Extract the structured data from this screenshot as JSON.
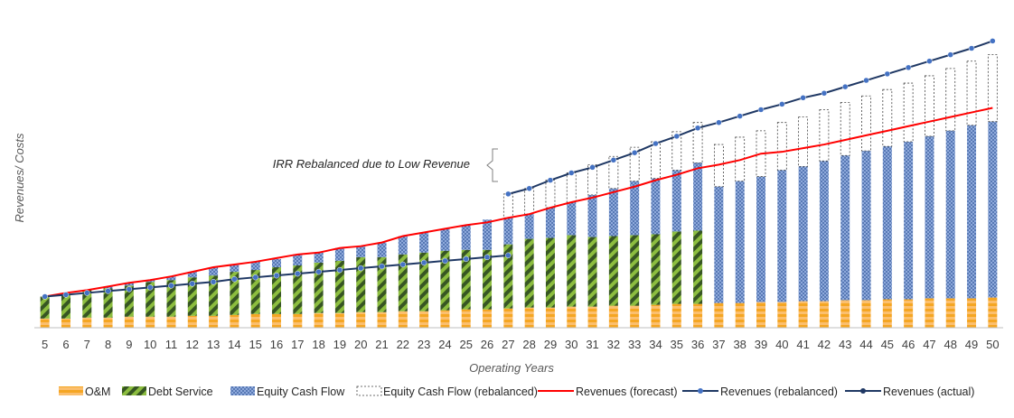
{
  "chart_data": {
    "type": "bar",
    "stacked": true,
    "xlabel": "Operating Years",
    "ylabel": "Revenues/ Costs",
    "x": [
      5,
      6,
      7,
      8,
      9,
      10,
      11,
      12,
      13,
      14,
      15,
      16,
      17,
      18,
      19,
      20,
      21,
      22,
      23,
      24,
      25,
      26,
      27,
      28,
      29,
      30,
      31,
      32,
      33,
      34,
      35,
      36,
      37,
      38,
      39,
      40,
      41,
      42,
      43,
      44,
      45,
      46,
      47,
      48,
      49,
      50
    ],
    "ylim": [
      0,
      340
    ],
    "grid": false,
    "legend_position": "bottom",
    "annotation": "IRR Rebalanced due to Low Revenue",
    "series": [
      {
        "name": "O&M",
        "kind": "bar",
        "color": "#f79646",
        "values": [
          10,
          10,
          11,
          11,
          12,
          12,
          12,
          13,
          13,
          14,
          15,
          15,
          15,
          16,
          16,
          17,
          17,
          18,
          18,
          19,
          20,
          20,
          21,
          22,
          22,
          23,
          23,
          24,
          24,
          25,
          26,
          26,
          27,
          27,
          28,
          28,
          29,
          29,
          30,
          30,
          31,
          31,
          32,
          32,
          32,
          33
        ]
      },
      {
        "name": "Debt Service",
        "kind": "bar",
        "color": "#548235",
        "values": [
          24,
          27,
          30,
          32,
          34,
          38,
          40,
          42,
          44,
          47,
          48,
          51,
          53,
          55,
          57,
          60,
          60,
          62,
          64,
          65,
          65,
          65,
          70,
          75,
          76,
          78,
          76,
          76,
          77,
          77,
          79,
          80,
          0,
          0,
          0,
          0,
          0,
          0,
          0,
          0,
          0,
          0,
          0,
          0,
          0,
          0
        ]
      },
      {
        "name": "Equity Cash Flow",
        "kind": "bar",
        "color": "#8faadc",
        "values": [
          0,
          0,
          0,
          2,
          3,
          2,
          4,
          6,
          9,
          8,
          9,
          9,
          12,
          11,
          14,
          12,
          16,
          20,
          22,
          24,
          27,
          33,
          29,
          27,
          33,
          36,
          46,
          52,
          59,
          61,
          67,
          74,
          127,
          133,
          137,
          144,
          147,
          153,
          158,
          163,
          167,
          172,
          177,
          183,
          189,
          192
        ]
      },
      {
        "name": "Equity Cash Flow (rebalanced)",
        "kind": "bar",
        "color": "#595959",
        "values": [
          0,
          0,
          0,
          0,
          0,
          0,
          0,
          0,
          0,
          0,
          0,
          0,
          0,
          0,
          0,
          0,
          0,
          0,
          0,
          0,
          0,
          0,
          26,
          28,
          30,
          32,
          33,
          35,
          37,
          40,
          42,
          44,
          46,
          48,
          50,
          52,
          54,
          56,
          58,
          60,
          62,
          64,
          66,
          68,
          70,
          73
        ]
      },
      {
        "name": "Revenues (forecast)",
        "kind": "line",
        "color": "#ff0000",
        "values": [
          34,
          38,
          41,
          45,
          49,
          52,
          56,
          61,
          66,
          69,
          72,
          76,
          80,
          82,
          87,
          89,
          93,
          100,
          104,
          108,
          112,
          115,
          120,
          124,
          131,
          137,
          142,
          148,
          154,
          161,
          167,
          174,
          178,
          183,
          190,
          192,
          196,
          200,
          205,
          210,
          215,
          220,
          225,
          230,
          235,
          240
        ]
      },
      {
        "name": "Revenues (rebalanced)",
        "kind": "line",
        "color": "#4472c4",
        "values": [
          null,
          null,
          null,
          null,
          null,
          null,
          null,
          null,
          null,
          null,
          null,
          null,
          null,
          null,
          null,
          null,
          null,
          null,
          null,
          null,
          null,
          null,
          146,
          152,
          161,
          169,
          175,
          183,
          191,
          201,
          209,
          218,
          224,
          231,
          238,
          244,
          251,
          256,
          263,
          270,
          277,
          284,
          291,
          298,
          305,
          313
        ]
      },
      {
        "name": "Revenues (actual)",
        "kind": "line",
        "color": "#1f3864",
        "values": [
          34,
          36,
          38,
          40,
          42,
          44,
          46,
          48,
          50,
          53,
          55,
          57,
          59,
          61,
          63,
          65,
          67,
          69,
          71,
          73,
          75,
          77,
          79,
          null,
          null,
          null,
          null,
          null,
          null,
          null,
          null,
          null,
          null,
          null,
          null,
          null,
          null,
          null,
          null,
          null,
          null,
          null,
          null,
          null,
          null,
          null
        ]
      }
    ]
  }
}
